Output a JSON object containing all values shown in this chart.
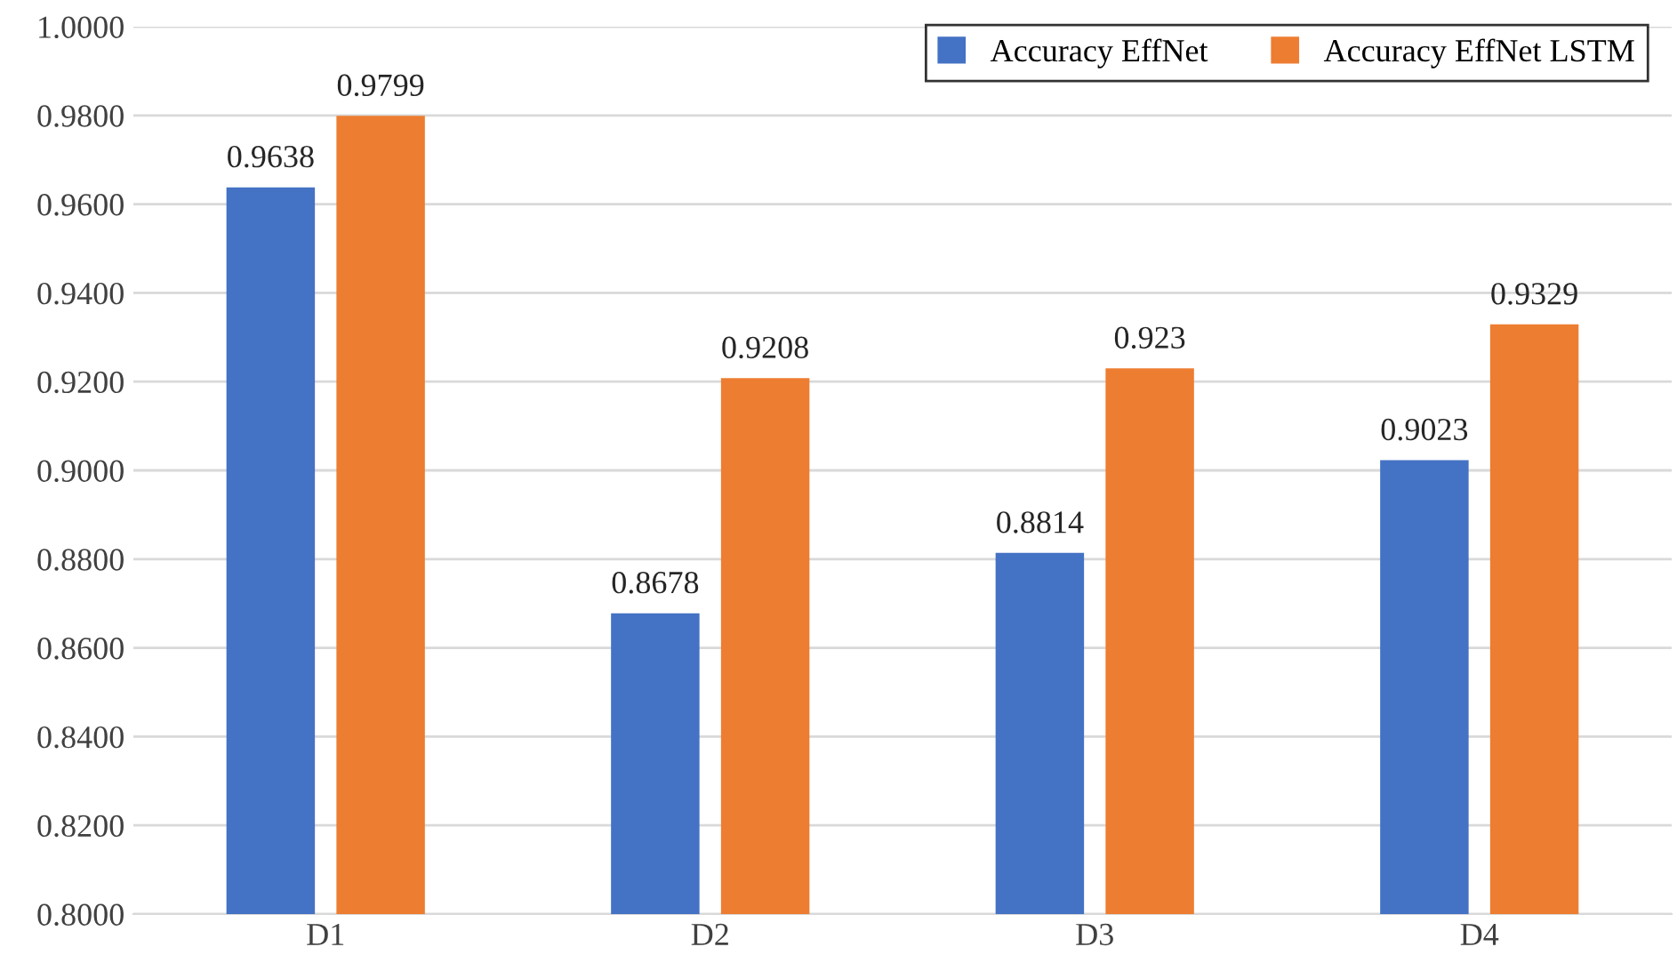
{
  "chart_data": {
    "type": "bar",
    "categories": [
      "D1",
      "D2",
      "D3",
      "D4"
    ],
    "series": [
      {
        "name": "Accuracy EffNet",
        "color": "#4472c4",
        "values": [
          0.9638,
          0.8678,
          0.8814,
          0.9023
        ]
      },
      {
        "name": "Accuracy EffNet LSTM",
        "color": "#ed7d31",
        "values": [
          0.9799,
          0.9208,
          0.923,
          0.9329
        ]
      }
    ],
    "ylim": [
      0.8,
      1.0
    ],
    "yticks": [
      {
        "value": 0.8,
        "label": "0.8000"
      },
      {
        "value": 0.82,
        "label": "0.8200"
      },
      {
        "value": 0.84,
        "label": "0.8400"
      },
      {
        "value": 0.86,
        "label": "0.8600"
      },
      {
        "value": 0.88,
        "label": "0.8800"
      },
      {
        "value": 0.9,
        "label": "0.9000"
      },
      {
        "value": 0.92,
        "label": "0.9200"
      },
      {
        "value": 0.94,
        "label": "0.9400"
      },
      {
        "value": 0.96,
        "label": "0.9600"
      },
      {
        "value": 0.98,
        "label": "0.9800"
      },
      {
        "value": 1.0,
        "label": "1.0000"
      }
    ],
    "grid": "y",
    "legend": "top right",
    "data_labels": true
  }
}
